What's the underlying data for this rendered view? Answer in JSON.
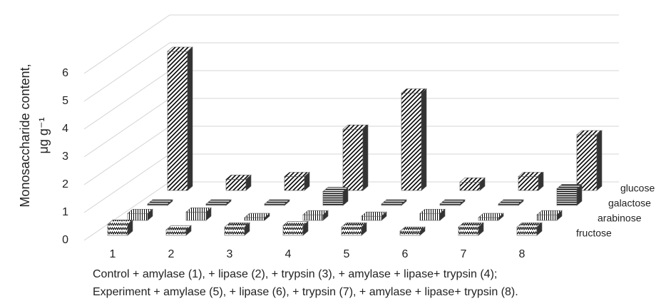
{
  "chart_data": {
    "type": "bar3d",
    "ylabel": [
      "Monosaccharide content,",
      "μg g⁻¹"
    ],
    "caption": [
      "Control + amylase (1), + lipase (2), + trypsin (3), + amylase + lipase+ trypsin (4);",
      "Experiment + amylase (5), + lipase (6), + trypsin (7), + amylase + lipase+ trypsin (8)."
    ],
    "categories": [
      "1",
      "2",
      "3",
      "4",
      "5",
      "6",
      "7",
      "8"
    ],
    "ylim": [
      0,
      6
    ],
    "yticks": [
      0,
      1,
      2,
      3,
      4,
      5,
      6
    ],
    "grid": true,
    "series": [
      {
        "name": "fructose",
        "color": "#000000",
        "pattern": "zigzag",
        "values": [
          0.4,
          0.2,
          0.3,
          0.35,
          0.3,
          0.15,
          0.3,
          0.3
        ]
      },
      {
        "name": "arabinose",
        "color": "#000000",
        "pattern": "vertical",
        "values": [
          0.25,
          0.3,
          0.1,
          0.2,
          0.15,
          0.25,
          0.1,
          0.2
        ]
      },
      {
        "name": "galactose",
        "color": "#000000",
        "pattern": "horizontal",
        "values": [
          0.05,
          0.05,
          0.05,
          0.5,
          0.05,
          0.05,
          0.05,
          0.6
        ]
      },
      {
        "name": "glucose",
        "color": "#000000",
        "pattern": "diagonal",
        "values": [
          5.0,
          0.4,
          0.5,
          2.2,
          3.5,
          0.3,
          0.5,
          2.0
        ]
      }
    ]
  }
}
